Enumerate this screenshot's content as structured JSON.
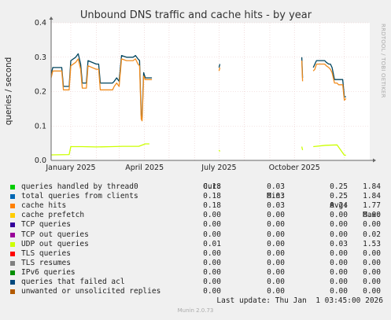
{
  "chart_data": {
    "type": "line",
    "title": "Unbound DNS traffic and cache hits - by year",
    "ylabel": "queries / second",
    "side_label": "RRDTOOL / TOBI OETIKER",
    "ylim": [
      0,
      0.4
    ],
    "yticks": [
      "0.0",
      "0.1",
      "0.2",
      "0.3",
      "0.4"
    ],
    "xlim": [
      "2024-12-08",
      "2026-01-01"
    ],
    "xticks": [
      {
        "date": "2025-01-01",
        "label": "January 2025"
      },
      {
        "date": "2025-04-01",
        "label": "April 2025"
      },
      {
        "date": "2025-07-01",
        "label": "July 2025"
      },
      {
        "date": "2025-10-01",
        "label": "October 2025"
      }
    ],
    "grid_dates": [
      "2025-01-01",
      "2025-02-01",
      "2025-03-01",
      "2025-04-01",
      "2025-05-01",
      "2025-06-01",
      "2025-07-01",
      "2025-08-01",
      "2025-09-01",
      "2025-10-01",
      "2025-11-01",
      "2025-12-01"
    ],
    "series": [
      {
        "color": "#00455e",
        "points": [
          [
            "2024-12-08",
            0.25
          ],
          [
            "2024-12-10",
            0.27
          ],
          [
            "2024-12-12",
            0.27
          ],
          [
            "2024-12-21",
            0.27
          ],
          [
            "2024-12-23",
            0.215
          ],
          [
            "2024-12-30",
            0.215
          ],
          [
            "2025-01-01",
            0.29
          ],
          [
            "2025-01-07",
            0.3
          ],
          [
            "2025-01-10",
            0.31
          ],
          [
            "2025-01-13",
            0.28
          ],
          [
            "2025-01-15",
            0.225
          ],
          [
            "2025-01-20",
            0.225
          ],
          [
            "2025-01-22",
            0.29
          ],
          [
            "2025-02-01",
            0.28
          ],
          [
            "2025-02-04",
            0.28
          ],
          [
            "2025-02-06",
            0.225
          ],
          [
            "2025-02-21",
            0.225
          ],
          [
            "2025-02-23",
            0.23
          ],
          [
            "2025-02-26",
            0.24
          ],
          [
            "2025-03-01",
            0.23
          ],
          [
            "2025-03-04",
            0.305
          ],
          [
            "2025-03-10",
            0.3
          ],
          [
            "2025-03-18",
            0.3
          ],
          [
            "2025-03-21",
            0.305
          ],
          [
            "2025-03-24",
            0.295
          ],
          [
            "2025-03-26",
            0.29
          ],
          [
            "2025-03-28",
            0.13
          ],
          [
            "2025-03-29",
            0.125
          ],
          [
            "2025-03-31",
            0.255
          ],
          [
            "2025-04-02",
            0.24
          ],
          [
            "2025-04-10",
            0.24
          ],
          null,
          [
            "2025-07-01",
            0.27
          ],
          [
            "2025-07-02",
            0.28
          ],
          null,
          [
            "2025-10-10",
            0.3
          ],
          [
            "2025-10-11",
            0.24
          ],
          null,
          [
            "2025-10-24",
            0.27
          ],
          [
            "2025-10-26",
            0.28
          ],
          [
            "2025-10-28",
            0.29
          ],
          [
            "2025-11-04",
            0.29
          ],
          [
            "2025-11-07",
            0.29
          ],
          [
            "2025-11-09",
            0.285
          ],
          [
            "2025-11-12",
            0.28
          ],
          [
            "2025-11-14",
            0.28
          ],
          [
            "2025-11-16",
            0.27
          ],
          [
            "2025-11-19",
            0.235
          ],
          [
            "2025-11-22",
            0.235
          ],
          [
            "2025-11-24",
            0.235
          ],
          [
            "2025-11-29",
            0.235
          ],
          [
            "2025-12-01",
            0.185
          ],
          [
            "2025-12-03",
            0.185
          ]
        ]
      },
      {
        "color": "#f08c1e",
        "points": [
          [
            "2024-12-08",
            0.24
          ],
          [
            "2024-12-10",
            0.26
          ],
          [
            "2024-12-12",
            0.26
          ],
          [
            "2024-12-21",
            0.26
          ],
          [
            "2024-12-23",
            0.205
          ],
          [
            "2024-12-30",
            0.205
          ],
          [
            "2025-01-01",
            0.275
          ],
          [
            "2025-01-07",
            0.285
          ],
          [
            "2025-01-10",
            0.295
          ],
          [
            "2025-01-13",
            0.265
          ],
          [
            "2025-01-15",
            0.21
          ],
          [
            "2025-01-20",
            0.21
          ],
          [
            "2025-01-22",
            0.275
          ],
          [
            "2025-02-01",
            0.265
          ],
          [
            "2025-02-04",
            0.265
          ],
          [
            "2025-02-06",
            0.205
          ],
          [
            "2025-02-21",
            0.205
          ],
          [
            "2025-02-23",
            0.215
          ],
          [
            "2025-02-26",
            0.225
          ],
          [
            "2025-03-01",
            0.215
          ],
          [
            "2025-03-04",
            0.295
          ],
          [
            "2025-03-10",
            0.29
          ],
          [
            "2025-03-18",
            0.29
          ],
          [
            "2025-03-21",
            0.295
          ],
          [
            "2025-03-24",
            0.28
          ],
          [
            "2025-03-26",
            0.275
          ],
          [
            "2025-03-28",
            0.12
          ],
          [
            "2025-03-29",
            0.115
          ],
          [
            "2025-03-31",
            0.245
          ],
          [
            "2025-04-02",
            0.235
          ],
          [
            "2025-04-10",
            0.235
          ],
          null,
          [
            "2025-07-01",
            0.26
          ],
          [
            "2025-07-02",
            0.27
          ],
          null,
          [
            "2025-10-10",
            0.29
          ],
          [
            "2025-10-11",
            0.23
          ],
          null,
          [
            "2025-10-24",
            0.26
          ],
          [
            "2025-10-26",
            0.265
          ],
          [
            "2025-10-28",
            0.28
          ],
          [
            "2025-11-04",
            0.28
          ],
          [
            "2025-11-07",
            0.28
          ],
          [
            "2025-11-09",
            0.275
          ],
          [
            "2025-11-12",
            0.27
          ],
          [
            "2025-11-14",
            0.265
          ],
          [
            "2025-11-16",
            0.255
          ],
          [
            "2025-11-19",
            0.225
          ],
          [
            "2025-11-22",
            0.225
          ],
          [
            "2025-11-24",
            0.22
          ],
          [
            "2025-11-29",
            0.22
          ],
          [
            "2025-12-01",
            0.175
          ],
          [
            "2025-12-03",
            0.18
          ]
        ]
      },
      {
        "color": "#ccff00",
        "points": [
          [
            "2024-12-08",
            0.016
          ],
          [
            "2024-12-30",
            0.017
          ],
          [
            "2025-01-01",
            0.04
          ],
          [
            "2025-01-15",
            0.04
          ],
          [
            "2025-02-01",
            0.039
          ],
          [
            "2025-02-20",
            0.04
          ],
          [
            "2025-03-05",
            0.041
          ],
          [
            "2025-03-25",
            0.041
          ],
          [
            "2025-04-02",
            0.048
          ],
          [
            "2025-04-07",
            0.048
          ],
          null,
          [
            "2025-07-01",
            0.03
          ],
          [
            "2025-07-02",
            0.026
          ],
          null,
          [
            "2025-10-10",
            0.04
          ],
          [
            "2025-10-11",
            0.03
          ],
          null,
          [
            "2025-10-24",
            0.04
          ],
          [
            "2025-11-08",
            0.044
          ],
          [
            "2025-11-22",
            0.045
          ],
          [
            "2025-12-01",
            0.015
          ],
          [
            "2025-12-03",
            0.015
          ]
        ]
      }
    ]
  },
  "legend": {
    "headers": [
      "Cur:",
      "Min:",
      "Avg:",
      "Max:"
    ],
    "rows": [
      {
        "label": "queries handled by thread0",
        "color": "#00cc00",
        "cur": "0.18",
        "min": "0.03",
        "avg": "0.25",
        "max": "1.84"
      },
      {
        "label": "total queries from clients",
        "color": "#0066b3",
        "cur": "0.18",
        "min": "0.03",
        "avg": "0.25",
        "max": "1.84"
      },
      {
        "label": "cache hits",
        "color": "#ff8000",
        "cur": "0.18",
        "min": "0.03",
        "avg": "0.24",
        "max": "1.77"
      },
      {
        "label": "cache prefetch",
        "color": "#ffcc00",
        "cur": "0.00",
        "min": "0.00",
        "avg": "0.00",
        "max": "0.00"
      },
      {
        "label": "TCP queries",
        "color": "#330099",
        "cur": "0.00",
        "min": "0.00",
        "avg": "0.00",
        "max": "0.00"
      },
      {
        "label": "TCP out queries",
        "color": "#990099",
        "cur": "0.00",
        "min": "0.00",
        "avg": "0.00",
        "max": "0.02"
      },
      {
        "label": "UDP out queries",
        "color": "#ccff00",
        "cur": "0.01",
        "min": "0.00",
        "avg": "0.03",
        "max": "1.53"
      },
      {
        "label": "TLS queries",
        "color": "#ff0000",
        "cur": "0.00",
        "min": "0.00",
        "avg": "0.00",
        "max": "0.00"
      },
      {
        "label": "TLS resumes",
        "color": "#808080",
        "cur": "0.00",
        "min": "0.00",
        "avg": "0.00",
        "max": "0.00"
      },
      {
        "label": "IPv6 queries",
        "color": "#008f00",
        "cur": "0.00",
        "min": "0.00",
        "avg": "0.00",
        "max": "0.00"
      },
      {
        "label": "queries that failed acl",
        "color": "#00487d",
        "cur": "0.00",
        "min": "0.00",
        "avg": "0.00",
        "max": "0.00"
      },
      {
        "label": "unwanted or unsolicited replies",
        "color": "#b35a00",
        "cur": "0.00",
        "min": "0.00",
        "avg": "0.00",
        "max": "0.00"
      }
    ]
  },
  "last_update": "Last update: Thu Jan  1 03:45:00 2026",
  "footer": "Munin 2.0.73"
}
